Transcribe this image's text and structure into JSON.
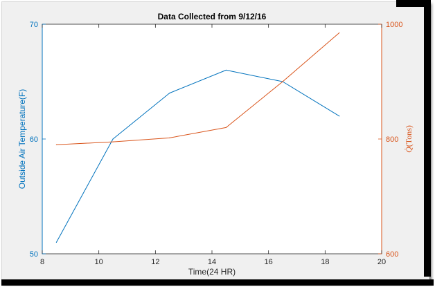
{
  "chart_data": {
    "type": "line",
    "title": "Data Collected from 9/12/16",
    "xlabel": "Time(24 HR)",
    "ylabel_left": "Outside Air Temperature(F)",
    "ylabel_right_symbol": "Q̇",
    "ylabel_right_unit": "(Tons)",
    "xlim": [
      8,
      20
    ],
    "ylim_left": [
      50,
      70
    ],
    "ylim_right": [
      600,
      1000
    ],
    "x_ticks": [
      8,
      10,
      12,
      14,
      16,
      18,
      20
    ],
    "y_left_ticks": [
      50,
      60,
      70
    ],
    "y_right_ticks": [
      600,
      800,
      1000
    ],
    "grid": false,
    "series": [
      {
        "axis": "left",
        "color": "#0072bd",
        "x": [
          8.5,
          10.5,
          12.5,
          14.5,
          16.5,
          18.5
        ],
        "y": [
          51,
          60,
          64,
          66,
          65,
          62
        ]
      },
      {
        "axis": "right",
        "color": "#d95319",
        "x": [
          8.5,
          10.5,
          12.5,
          14.5,
          16.5,
          18.5
        ],
        "y": [
          790,
          795,
          802,
          820,
          900,
          985
        ]
      }
    ]
  }
}
